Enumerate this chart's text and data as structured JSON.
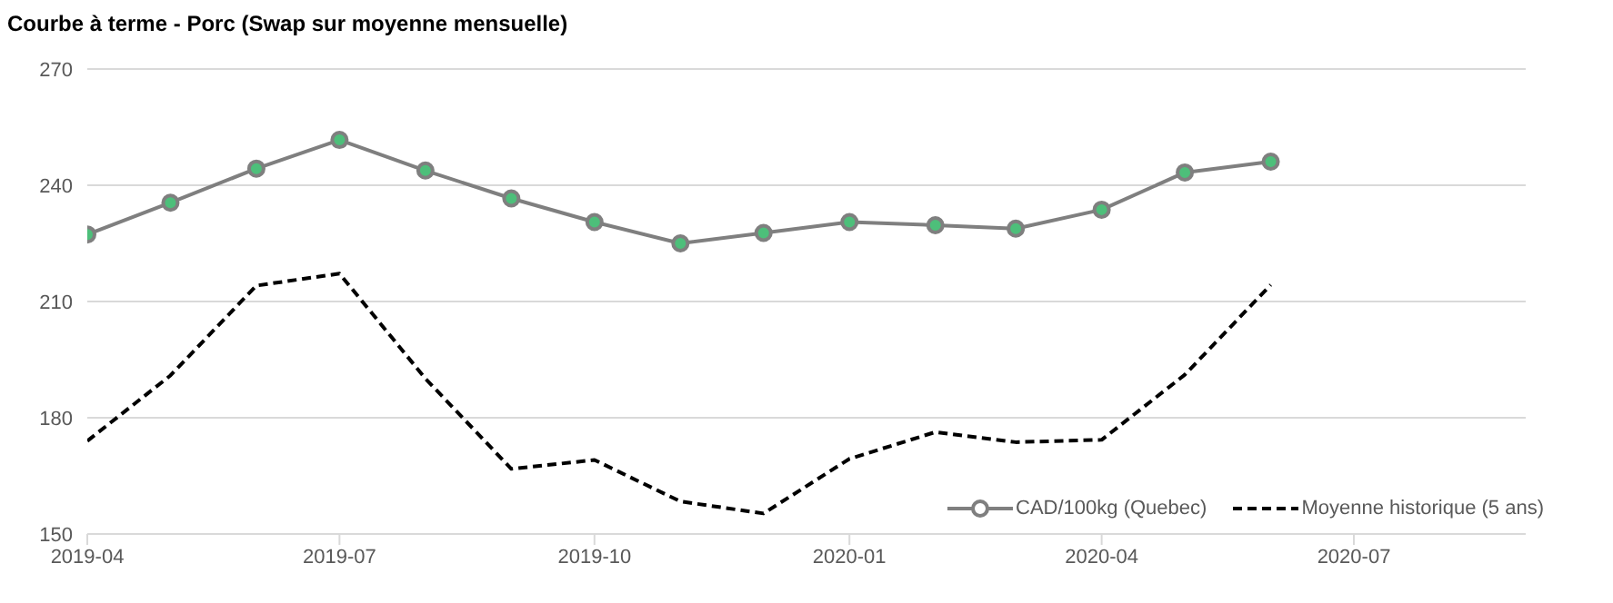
{
  "chart_data": {
    "type": "line",
    "title": "Courbe à terme - Porc (Swap sur moyenne mensuelle)",
    "x": [
      "2019-04",
      "2019-05",
      "2019-06",
      "2019-07",
      "2019-08",
      "2019-09",
      "2019-10",
      "2019-11",
      "2019-12",
      "2020-01",
      "2020-02",
      "2020-03",
      "2020-04",
      "2020-05",
      "2020-06"
    ],
    "series": [
      {
        "name": "CAD/100kg (Quebec)",
        "color": "#7f7f7f",
        "marker": "circle",
        "line_style": "solid",
        "values": [
          227.3,
          235.5,
          244.3,
          251.7,
          243.8,
          236.6,
          230.5,
          225,
          227.7,
          230.5,
          229.7,
          228.8,
          233.7,
          243.3,
          246.1
        ]
      },
      {
        "name": "Moyenne historique (5 ans)",
        "color": "#000000",
        "marker": "none",
        "line_style": "dashed",
        "values": [
          174,
          190.9,
          214.1,
          217.2,
          190.1,
          166.8,
          169.1,
          158.4,
          155.3,
          169.4,
          176.3,
          173.7,
          174.3,
          191.1,
          214.3
        ]
      }
    ],
    "xlim": [
      "2019-04",
      "2020-09"
    ],
    "xticks": [
      "2019-04",
      "2019-07",
      "2019-10",
      "2020-01",
      "2020-04",
      "2020-07"
    ],
    "ylim": [
      150,
      270
    ],
    "yticks": [
      150,
      180,
      210,
      240,
      270
    ],
    "grid": "y",
    "legend": "bottom right"
  }
}
